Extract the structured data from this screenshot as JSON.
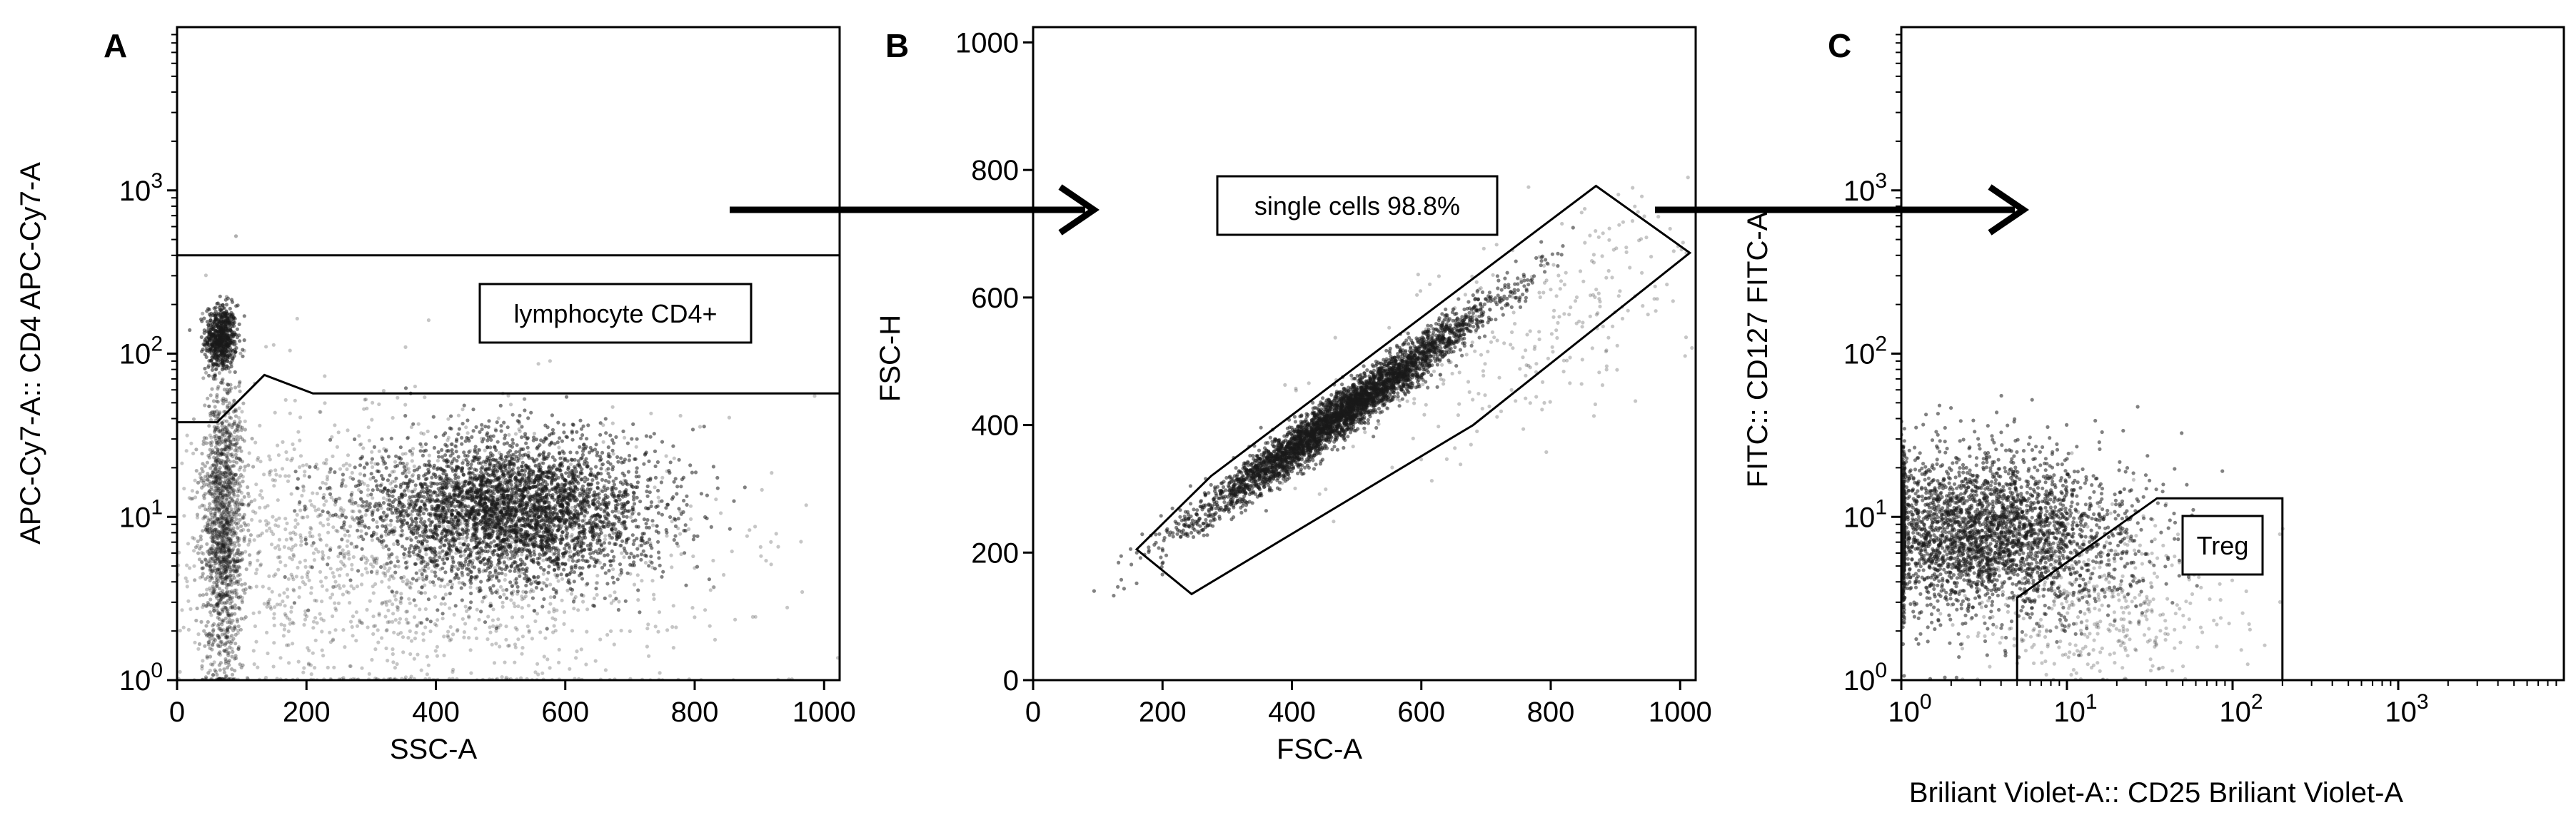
{
  "chart_data": [
    {
      "panel_letter": "A",
      "type": "scatter",
      "xlabel": "SSC-A",
      "ylabel": "APC-Cy7-A:: CD4 APC-Cy7-A",
      "x_scale": "linear",
      "y_scale": "log",
      "xlim": [
        0,
        1024
      ],
      "ylim": [
        1,
        10000
      ],
      "x_ticks": [
        0,
        200,
        400,
        600,
        800,
        1000
      ],
      "x_tick_labels": [
        "0",
        "200",
        "400",
        "600",
        "800",
        "1000"
      ],
      "y_ticks": [
        1,
        10,
        100,
        1000
      ],
      "y_tick_labels": [
        {
          "base": "10",
          "exp": "0"
        },
        {
          "base": "10",
          "exp": "1"
        },
        {
          "base": "10",
          "exp": "2"
        },
        {
          "base": "10",
          "exp": "3"
        }
      ],
      "populations": [
        {
          "center": [
            68,
            125
          ],
          "spread": [
            12,
            0.1
          ],
          "count": 600,
          "density": "high"
        },
        {
          "center": [
            72,
            9
          ],
          "spread": [
            16,
            0.45
          ],
          "count": 1400,
          "density": "medium"
        },
        {
          "center": [
            520,
            11
          ],
          "spread": [
            110,
            0.22
          ],
          "count": 3600,
          "density": "high"
        },
        {
          "center": [
            350,
            6
          ],
          "spread": [
            220,
            0.45
          ],
          "count": 1800,
          "density": "low"
        }
      ],
      "gate": {
        "label": "lymphocyte CD4+",
        "vertices": [
          [
            0,
            400
          ],
          [
            1024,
            400
          ],
          [
            1024,
            57
          ],
          [
            210,
            57
          ],
          [
            135,
            74
          ],
          [
            62,
            38
          ],
          [
            0,
            38
          ]
        ]
      }
    },
    {
      "panel_letter": "B",
      "type": "scatter",
      "xlabel": "FSC-A",
      "ylabel": "FSC-H",
      "x_scale": "linear",
      "y_scale": "linear",
      "xlim": [
        0,
        1024
      ],
      "ylim": [
        0,
        1024
      ],
      "x_ticks": [
        0,
        200,
        400,
        600,
        800,
        1000
      ],
      "x_tick_labels": [
        "0",
        "200",
        "400",
        "600",
        "800",
        "1000"
      ],
      "y_ticks": [
        0,
        200,
        400,
        600,
        800,
        1000
      ],
      "y_tick_labels": [
        "0",
        "200",
        "400",
        "600",
        "800",
        "1000"
      ],
      "populations": [
        {
          "center": [
            480,
            420
          ],
          "spread": [
            110,
            18
          ],
          "slope": 0.73,
          "count": 4000,
          "density": "high"
        },
        {
          "center": [
            780,
            560
          ],
          "spread": [
            150,
            80
          ],
          "slope": 0.5,
          "count": 300,
          "density": "low"
        }
      ],
      "gate": {
        "label": "single cells 98.8%",
        "vertices": [
          [
            160,
            205
          ],
          [
            275,
            320
          ],
          [
            870,
            775
          ],
          [
            1015,
            670
          ],
          [
            680,
            400
          ],
          [
            245,
            135
          ]
        ]
      }
    },
    {
      "panel_letter": "C",
      "type": "scatter",
      "xlabel": "Briliant Violet-A:: CD25 Briliant Violet-A",
      "ylabel": "FITC:: CD127 FITC-A",
      "x_scale": "log",
      "y_scale": "log",
      "xlim": [
        1,
        10000
      ],
      "ylim": [
        1,
        10000
      ],
      "x_ticks": [
        1,
        10,
        100,
        1000
      ],
      "x_tick_labels": [
        {
          "base": "10",
          "exp": "0"
        },
        {
          "base": "10",
          "exp": "1"
        },
        {
          "base": "10",
          "exp": "2"
        },
        {
          "base": "10",
          "exp": "3"
        }
      ],
      "y_ticks": [
        1,
        10,
        100,
        1000
      ],
      "y_tick_labels": [
        {
          "base": "10",
          "exp": "0"
        },
        {
          "base": "10",
          "exp": "1"
        },
        {
          "base": "10",
          "exp": "2"
        },
        {
          "base": "10",
          "exp": "3"
        }
      ],
      "populations": [
        {
          "center": [
            3,
            8
          ],
          "spread": [
            0.45,
            0.25
          ],
          "count": 3200,
          "density": "high"
        },
        {
          "center": [
            15,
            3
          ],
          "spread": [
            0.4,
            0.25
          ],
          "count": 500,
          "density": "low"
        }
      ],
      "gate": {
        "label": "Treg",
        "vertices": [
          [
            5,
            1
          ],
          [
            5,
            3.2
          ],
          [
            35,
            13
          ],
          [
            200,
            13
          ],
          [
            200,
            1
          ]
        ]
      }
    }
  ]
}
